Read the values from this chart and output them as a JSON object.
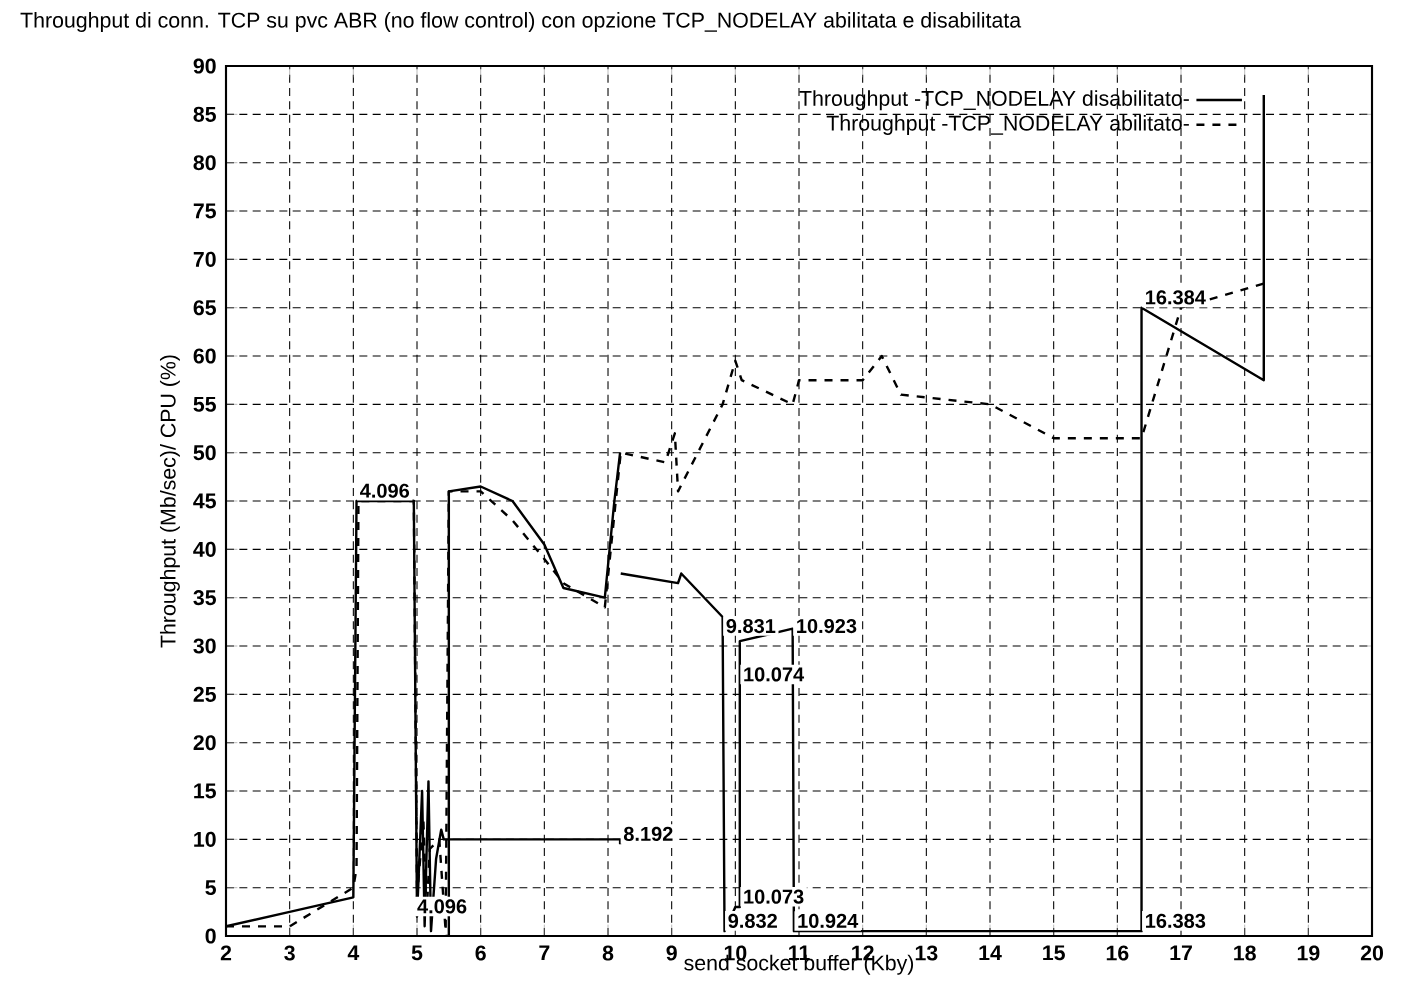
{
  "chart_data": {
    "type": "line",
    "title": "Throughput di conn. TCP su pvc ABR (no flow control) con opzione TCP_NODELAY abilitata e disabilitata",
    "xlabel": "send socket buffer (Kby)",
    "ylabel": "Throughput (Mb/sec)/ CPU (%)",
    "xlim": [
      2,
      20
    ],
    "ylim": [
      0,
      90
    ],
    "xticks": [
      2,
      3,
      4,
      5,
      6,
      7,
      8,
      9,
      10,
      11,
      12,
      13,
      14,
      15,
      16,
      17,
      18,
      19,
      20
    ],
    "yticks": [
      0,
      5,
      10,
      15,
      20,
      25,
      30,
      35,
      40,
      45,
      50,
      55,
      60,
      65,
      70,
      75,
      80,
      85,
      90
    ],
    "grid": true,
    "legend": "top right",
    "series": [
      {
        "name": "Throughput -TCP_NODELAY disabilitato-",
        "color": "#000000",
        "line_style": "solid",
        "x": [
          2,
          3,
          4,
          4.05,
          4.95,
          5.0,
          5.08,
          5.12,
          5.18,
          5.22,
          5.3,
          5.38,
          5.42,
          8.19,
          8.19,
          null,
          5.45,
          5.5,
          5.5,
          6,
          6.5,
          7,
          7.3,
          7.95,
          8.1,
          8.19,
          null,
          8.2,
          9.1,
          9.15,
          9.8,
          9.83,
          10.0,
          10.07,
          10.07,
          10.9,
          10.92,
          16.38,
          16.38,
          18.3,
          18.3
        ],
        "values": [
          1,
          2.5,
          4,
          45,
          45,
          2,
          15,
          1,
          16,
          0.5,
          8,
          11,
          10,
          10,
          9.5,
          null,
          0,
          0,
          46,
          46.5,
          45,
          40.5,
          36,
          35,
          45,
          50,
          null,
          37.5,
          36.5,
          37.5,
          33,
          0.5,
          3,
          3,
          30.5,
          31.8,
          0.5,
          0.5,
          65,
          57.5,
          87
        ]
      },
      {
        "name": "Throughput -TCP_NODELAY abilitato-",
        "color": "#000000",
        "line_style": "dashed",
        "x": [
          2,
          3,
          4,
          4.05,
          4.08,
          4.95,
          5.0,
          5.1,
          5.15,
          5.2,
          5.35,
          5.45,
          5.5,
          6,
          6.5,
          7,
          7.3,
          7.95,
          8.2,
          8.9,
          9.05,
          9.1,
          9.8,
          10.0,
          10.1,
          10.9,
          11.0,
          12.0,
          12.3,
          12.6,
          14,
          15,
          16.38,
          17,
          18.3
        ],
        "values": [
          1,
          1,
          5,
          7,
          45,
          45,
          4,
          12,
          2,
          9,
          10,
          0.5,
          46,
          46,
          43,
          39,
          36.5,
          34,
          50,
          49,
          52,
          46,
          55,
          59.5,
          57.5,
          55,
          57.5,
          57.5,
          60,
          56,
          55,
          51.5,
          51.5,
          65,
          67.5
        ]
      }
    ],
    "annotations": [
      {
        "text": "4.096",
        "x": 4.05,
        "y": 45
      },
      {
        "text": "4.096",
        "x": 4.95,
        "y": 2
      },
      {
        "text": "8.192",
        "x": 8.19,
        "y": 9.5
      },
      {
        "text": "9.831",
        "x": 9.8,
        "y": 31
      },
      {
        "text": "9.832",
        "x": 9.83,
        "y": 0.5
      },
      {
        "text": "10.074",
        "x": 10.07,
        "y": 26
      },
      {
        "text": "10.073",
        "x": 10.07,
        "y": 3
      },
      {
        "text": "10.923",
        "x": 10.9,
        "y": 31
      },
      {
        "text": "10.924",
        "x": 10.92,
        "y": 0.5
      },
      {
        "text": "16.384",
        "x": 16.38,
        "y": 65
      },
      {
        "text": "16.383",
        "x": 16.38,
        "y": 0.5
      }
    ]
  }
}
